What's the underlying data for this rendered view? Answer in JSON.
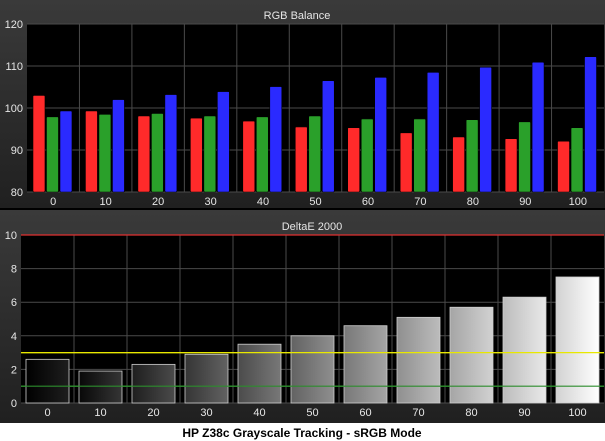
{
  "caption": "HP Z38c Grayscale Tracking - sRGB Mode",
  "colors": {
    "red_bar": "#ff2a2a",
    "green_bar": "#2aa02a",
    "blue_bar": "#2a2aff",
    "reference_red": "#e03030",
    "reference_yellow": "#e8e800",
    "reference_green": "#2c8c2c"
  },
  "chart_data": [
    {
      "type": "bar",
      "title": "RGB Balance",
      "categories": [
        "0",
        "10",
        "20",
        "30",
        "40",
        "50",
        "60",
        "70",
        "80",
        "90",
        "100"
      ],
      "ylim": [
        80,
        120
      ],
      "yticks": [
        "80",
        "90",
        "100",
        "110",
        "120"
      ],
      "grid": true,
      "series": [
        {
          "values": [
            103,
            99.3,
            98.1,
            97.6,
            96.9,
            95.5,
            95.3,
            94.1,
            93.1,
            92.7,
            92.1
          ]
        },
        {
          "values": [
            97.9,
            98.5,
            98.7,
            98.1,
            97.9,
            98.1,
            97.4,
            97.4,
            97.2,
            96.7,
            95.3
          ]
        },
        {
          "values": [
            99.3,
            102,
            103.2,
            103.9,
            105.1,
            106.5,
            107.3,
            108.5,
            109.7,
            110.9,
            112.2
          ]
        }
      ]
    },
    {
      "type": "bar",
      "title": "DeltaE 2000",
      "categories": [
        "0",
        "10",
        "20",
        "30",
        "40",
        "50",
        "60",
        "70",
        "80",
        "90",
        "100"
      ],
      "ylim": [
        0,
        10
      ],
      "yticks": [
        "0",
        "2",
        "4",
        "6",
        "8",
        "10"
      ],
      "grid": true,
      "reference_lines": [
        1,
        3,
        10
      ],
      "values": [
        2.6,
        1.9,
        2.3,
        2.9,
        3.5,
        4.0,
        4.6,
        5.1,
        5.7,
        6.3,
        7.5
      ]
    }
  ]
}
